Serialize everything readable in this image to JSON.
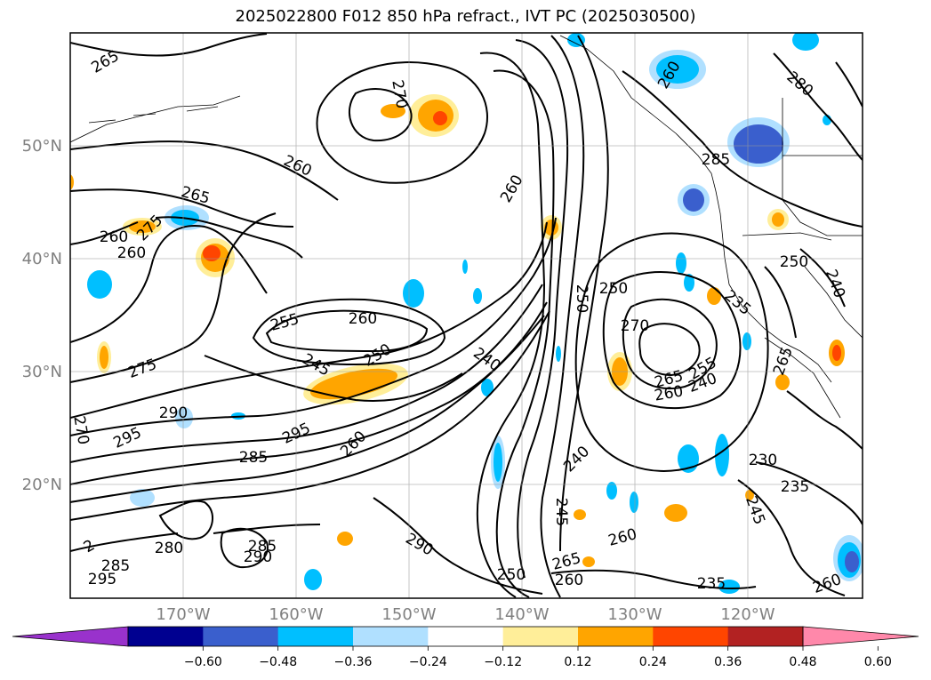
{
  "title": "2025022800 F012 850 hPa refract., IVT PC (2025030500)",
  "map": {
    "lon_range": [
      -180,
      -110
    ],
    "lat_range": [
      10,
      60
    ],
    "lat_labels": [
      "20°N",
      "30°N",
      "40°N",
      "50°N"
    ],
    "lon_labels": [
      "170°W",
      "160°W",
      "150°W",
      "140°W",
      "130°W",
      "120°W"
    ],
    "contour_labels": [
      "265",
      "270",
      "260",
      "265",
      "260",
      "275",
      "260",
      "255",
      "245",
      "250",
      "275",
      "290",
      "295",
      "295",
      "285",
      "280",
      "285",
      "290",
      "285",
      "260",
      "260",
      "290",
      "260",
      "240",
      "250",
      "250",
      "270",
      "265",
      "260",
      "255",
      "240",
      "235",
      "240",
      "245",
      "260",
      "265",
      "260",
      "235",
      "230",
      "235",
      "245",
      "260",
      "250",
      "250",
      "240",
      "265",
      "260",
      "280",
      "285",
      "295",
      "270",
      "2"
    ],
    "ivt_pc_shading": {
      "positive_colors": [
        "#ffee99",
        "#ffa500",
        "#ff4500",
        "#b22222",
        "#ff88aa"
      ],
      "negative_colors": [
        "#b0e0ff",
        "#00bfff",
        "#3a5fcd",
        "#000090",
        "#9932cc"
      ]
    },
    "line_color": "#000000",
    "grid": true
  },
  "colorbar": {
    "ticks": [
      "−0.60",
      "−0.48",
      "−0.36",
      "−0.24",
      "−0.12",
      "0.12",
      "0.24",
      "0.36",
      "0.48",
      "0.60"
    ],
    "colors": [
      "#9932cc",
      "#000090",
      "#3a5fcd",
      "#00bfff",
      "#b0e0ff",
      "#ffffff",
      "#ffee99",
      "#ffa500",
      "#ff4500",
      "#b22222",
      "#ff88aa"
    ]
  }
}
